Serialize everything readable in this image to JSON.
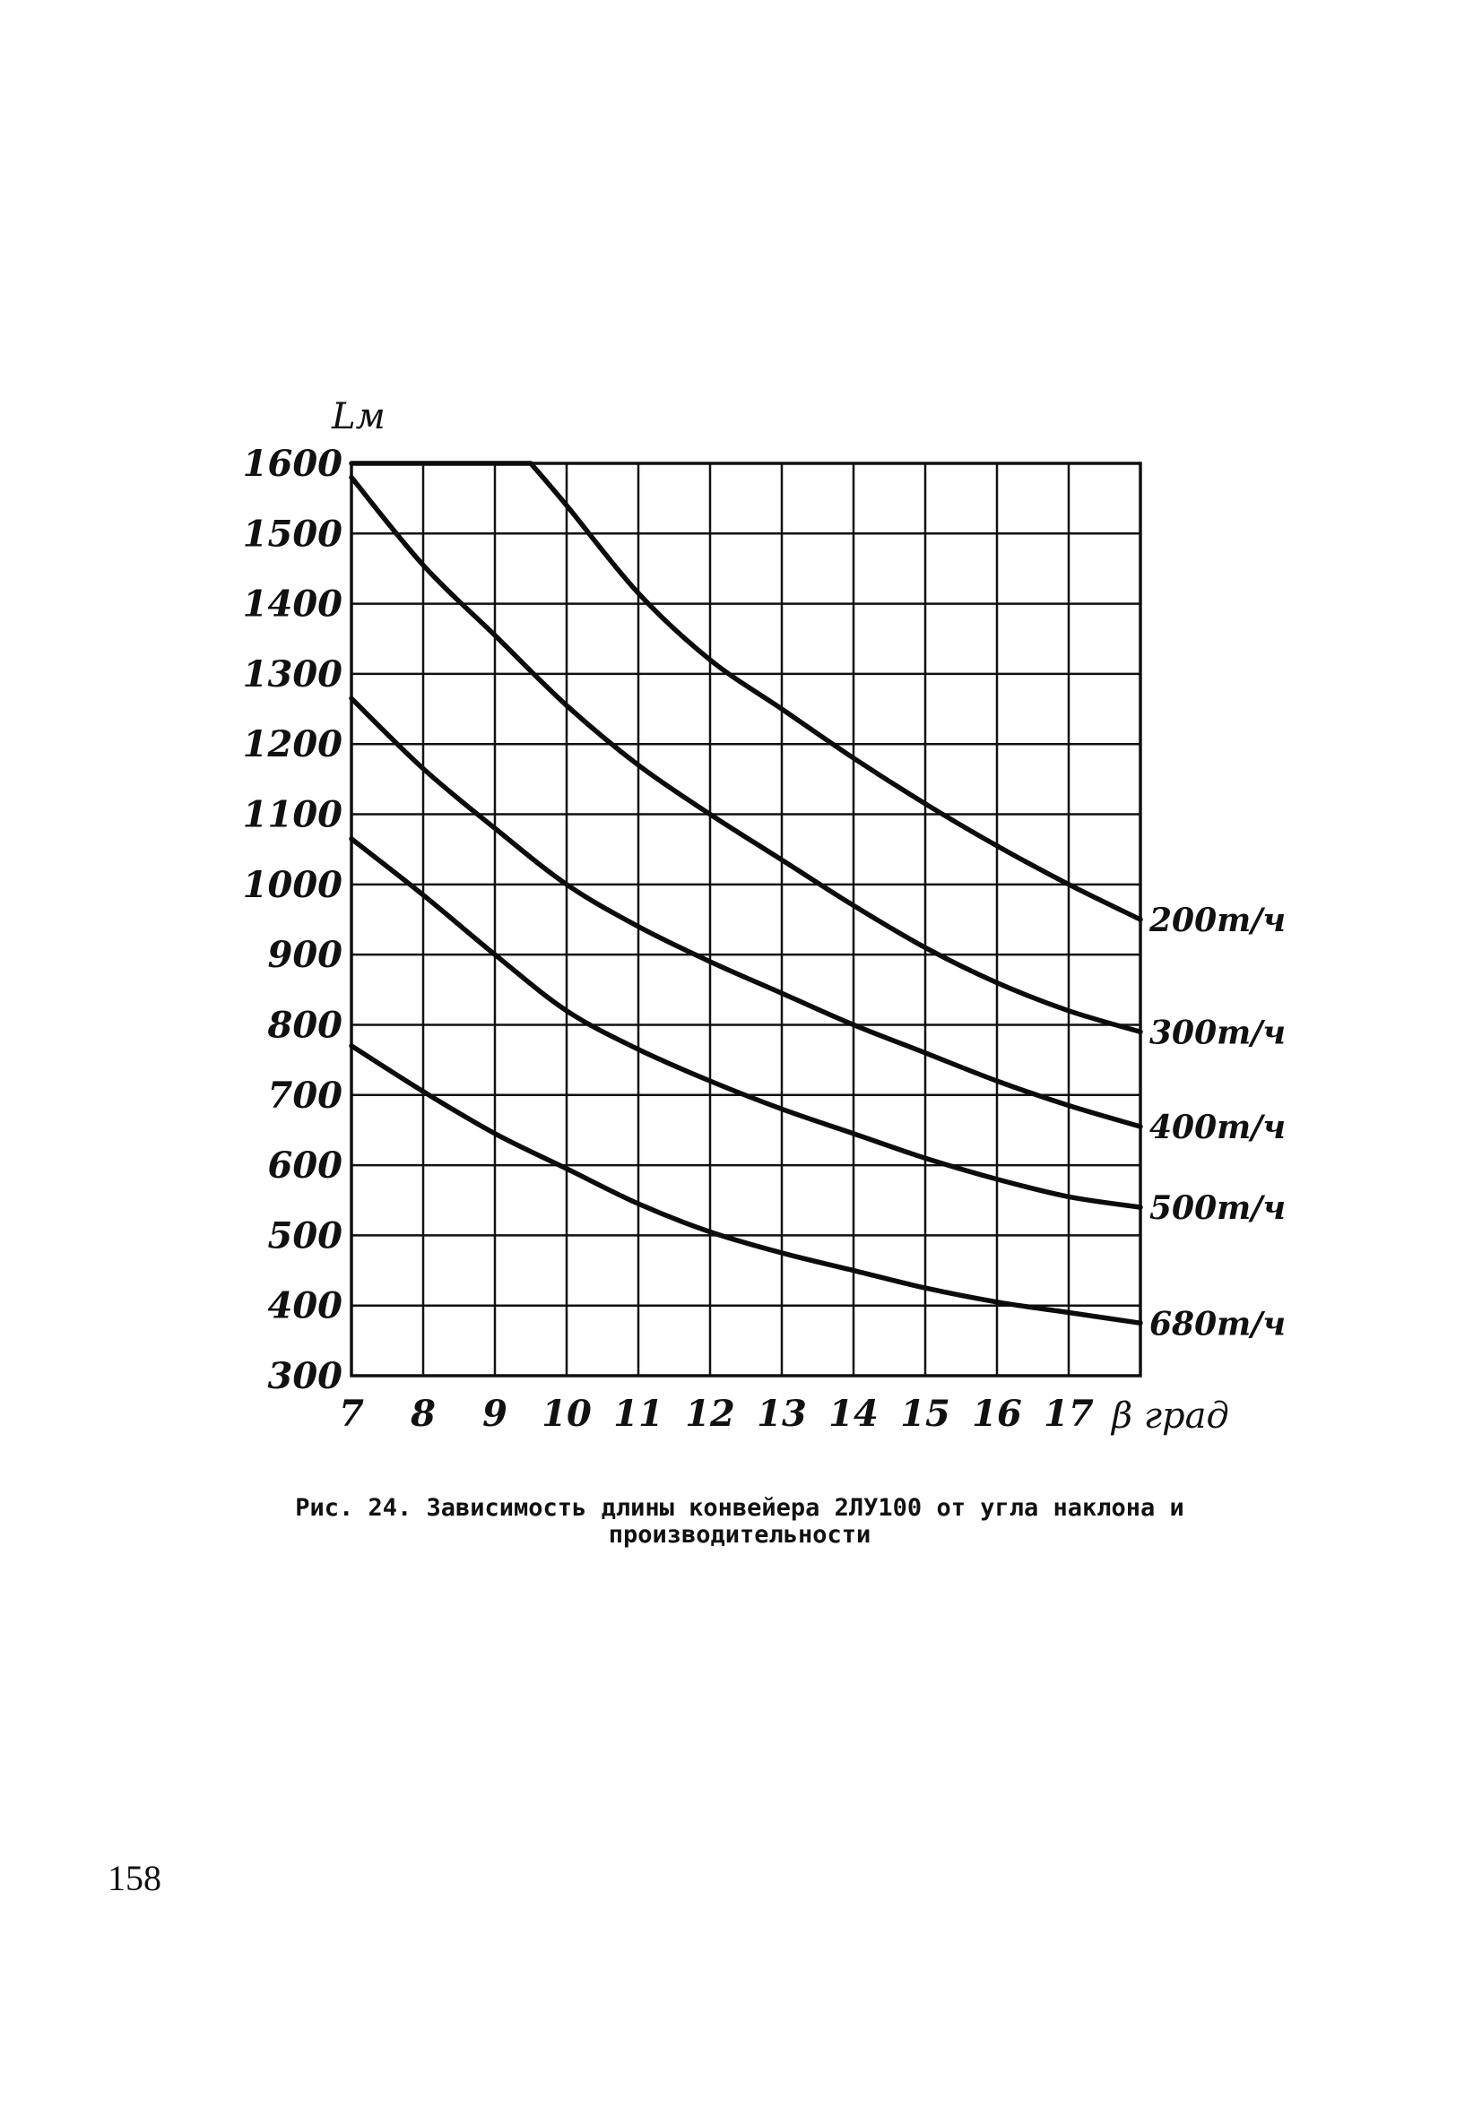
{
  "chart_data": {
    "type": "line",
    "ylabel": "Lм",
    "xlabel": "β град",
    "xlim": [
      7,
      18
    ],
    "ylim": [
      300,
      1600
    ],
    "x_ticks": [
      "7",
      "8",
      "9",
      "10",
      "11",
      "12",
      "13",
      "14",
      "15",
      "16",
      "17"
    ],
    "y_ticks": [
      "1600",
      "1500",
      "1400",
      "1300",
      "1200",
      "1100",
      "1000",
      "900",
      "800",
      "700",
      "600",
      "500",
      "400",
      "300"
    ],
    "grid": true,
    "series": [
      {
        "name": "200т/ч",
        "x": [
          7,
          9.5,
          10,
          11,
          12,
          13,
          14,
          15,
          16,
          17,
          18
        ],
        "y": [
          1600,
          1600,
          1540,
          1415,
          1320,
          1250,
          1180,
          1115,
          1055,
          1000,
          950
        ]
      },
      {
        "name": "300т/ч",
        "x": [
          7,
          8,
          9,
          10,
          11,
          12,
          13,
          14,
          15,
          16,
          17,
          18
        ],
        "y": [
          1580,
          1455,
          1355,
          1255,
          1170,
          1100,
          1035,
          970,
          910,
          860,
          820,
          790
        ]
      },
      {
        "name": "400т/ч",
        "x": [
          7,
          8,
          9,
          10,
          11,
          12,
          13,
          14,
          15,
          16,
          17,
          18
        ],
        "y": [
          1265,
          1165,
          1080,
          1000,
          940,
          890,
          845,
          800,
          760,
          720,
          685,
          655
        ]
      },
      {
        "name": "500т/ч",
        "x": [
          7,
          8,
          9,
          10,
          11,
          12,
          13,
          14,
          15,
          16,
          17,
          18
        ],
        "y": [
          1065,
          985,
          900,
          820,
          765,
          720,
          680,
          645,
          610,
          580,
          555,
          540
        ]
      },
      {
        "name": "680т/ч",
        "x": [
          7,
          8,
          9,
          10,
          11,
          12,
          13,
          14,
          15,
          16,
          17,
          18
        ],
        "y": [
          770,
          705,
          645,
          595,
          545,
          505,
          475,
          450,
          425,
          405,
          390,
          375
        ]
      }
    ]
  },
  "caption": {
    "line1": "Рис. 24. Зависимость длины конвейера 2ЛУ100 от угла наклона и",
    "line2": "производительности"
  },
  "page_number": "158"
}
